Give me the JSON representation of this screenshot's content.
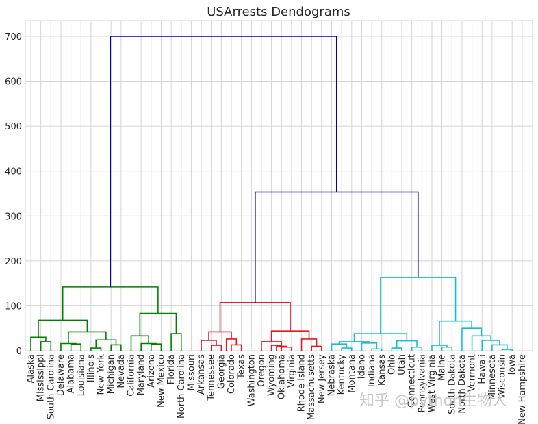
{
  "chart_data": {
    "type": "dendrogram",
    "title": "USArrests Dendograms",
    "xlabel": "",
    "ylabel": "",
    "ylim": [
      0,
      735
    ],
    "yticks": [
      0,
      100,
      200,
      300,
      400,
      500,
      600,
      700
    ],
    "grid": true,
    "leaves": [
      "Alaska",
      "Mississippi",
      "South Carolina",
      "Delaware",
      "Alabama",
      "Louisiana",
      "Illinois",
      "New York",
      "Michigan",
      "Nevada",
      "California",
      "Maryland",
      "Arizona",
      "New Mexico",
      "Florida",
      "North Carolina",
      "Missouri",
      "Arkansas",
      "Tennessee",
      "Georgia",
      "Colorado",
      "Texas",
      "Washington",
      "Oregon",
      "Wyoming",
      "Oklahoma",
      "Virginia",
      "Rhode Island",
      "Massachusetts",
      "New Jersey",
      "Nebraska",
      "Kentucky",
      "Montana",
      "Idaho",
      "Indiana",
      "Kansas",
      "Ohio",
      "Utah",
      "Connecticut",
      "Pennsylvania",
      "West Virginia",
      "Maine",
      "South Dakota",
      "North Dakota",
      "Vermont",
      "Hawaii",
      "Minnesota",
      "Wisconsin",
      "Iowa",
      "New Hampshire"
    ],
    "cluster_colors": {
      "green": "#008000",
      "red": "#e41a1c",
      "cyan": "#17becf",
      "above": "#0000aa"
    },
    "links": [
      {
        "l": 1,
        "r": 2,
        "h": 20,
        "c": "green"
      },
      {
        "l": 0,
        "r": 1.5,
        "h": 30,
        "c": "green"
      },
      {
        "l": 4,
        "r": 5,
        "h": 15,
        "c": "green"
      },
      {
        "l": 3,
        "r": 4.5,
        "h": 16,
        "c": "green"
      },
      {
        "l": 6,
        "r": 7,
        "h": 6,
        "c": "green"
      },
      {
        "l": 8,
        "r": 9,
        "h": 13,
        "c": "green"
      },
      {
        "l": 6.5,
        "r": 8.5,
        "h": 24,
        "c": "green"
      },
      {
        "l": 3.75,
        "r": 7.5,
        "h": 42,
        "c": "green"
      },
      {
        "l": 0.75,
        "r": 5.625,
        "h": 68,
        "c": "green"
      },
      {
        "l": 12,
        "r": 13,
        "h": 15,
        "c": "green"
      },
      {
        "l": 11,
        "r": 12.5,
        "h": 16,
        "c": "green"
      },
      {
        "l": 10,
        "r": 11.75,
        "h": 33,
        "c": "green"
      },
      {
        "l": 14,
        "r": 15,
        "h": 38,
        "c": "green"
      },
      {
        "l": 10.875,
        "r": 14.5,
        "h": 83,
        "c": "green"
      },
      {
        "l": 3.1875,
        "r": 12.6875,
        "h": 142,
        "c": "green"
      },
      {
        "l": 18,
        "r": 19,
        "h": 12,
        "c": "red"
      },
      {
        "l": 17,
        "r": 18.5,
        "h": 23,
        "c": "red"
      },
      {
        "l": 20,
        "r": 21,
        "h": 13,
        "c": "red"
      },
      {
        "l": 19.5,
        "r": 20.5,
        "h": 26,
        "c": "red"
      },
      {
        "l": 17.75,
        "r": 20,
        "h": 42,
        "c": "red"
      },
      {
        "l": 24,
        "r": 25,
        "h": 12,
        "c": "red"
      },
      {
        "l": 25,
        "r": 26,
        "h": 8,
        "c": "red"
      },
      {
        "l": 24.5,
        "r": 25.5,
        "h": 10,
        "c": "red"
      },
      {
        "l": 23,
        "r": 25,
        "h": 20,
        "c": "red"
      },
      {
        "l": 28,
        "r": 29,
        "h": 10,
        "c": "red"
      },
      {
        "l": 27,
        "r": 28.5,
        "h": 26,
        "c": "red"
      },
      {
        "l": 24,
        "r": 27.75,
        "h": 44,
        "c": "red"
      },
      {
        "l": 18.875,
        "r": 25.875,
        "h": 107,
        "c": "red"
      },
      {
        "l": 31,
        "r": 32,
        "h": 6,
        "c": "cyan"
      },
      {
        "l": 30,
        "r": 31.5,
        "h": 15,
        "c": "cyan"
      },
      {
        "l": 34,
        "r": 35,
        "h": 4,
        "c": "cyan"
      },
      {
        "l": 33,
        "r": 34.5,
        "h": 17,
        "c": "cyan"
      },
      {
        "l": 30.75,
        "r": 33.75,
        "h": 20,
        "c": "cyan"
      },
      {
        "l": 36,
        "r": 37,
        "h": 6,
        "c": "cyan"
      },
      {
        "l": 38,
        "r": 39,
        "h": 8,
        "c": "cyan"
      },
      {
        "l": 36.5,
        "r": 38.5,
        "h": 22,
        "c": "cyan"
      },
      {
        "l": 32.25,
        "r": 37.5,
        "h": 38,
        "c": "cyan"
      },
      {
        "l": 41,
        "r": 42,
        "h": 8,
        "c": "cyan"
      },
      {
        "l": 40,
        "r": 41.5,
        "h": 12,
        "c": "cyan"
      },
      {
        "l": 47,
        "r": 48,
        "h": 3,
        "c": "cyan"
      },
      {
        "l": 46,
        "r": 47.5,
        "h": 13,
        "c": "cyan"
      },
      {
        "l": 45,
        "r": 46.75,
        "h": 23,
        "c": "cyan"
      },
      {
        "l": 44,
        "r": 45.875,
        "h": 33,
        "c": "cyan"
      },
      {
        "l": 43,
        "r": 44.9375,
        "h": 50,
        "c": "cyan"
      },
      {
        "l": 40.75,
        "r": 43.96875,
        "h": 66,
        "c": "cyan"
      },
      {
        "l": 34.875,
        "r": 42.359375,
        "h": 163,
        "c": "cyan"
      },
      {
        "l": 22.375,
        "r": 38.6171875,
        "h": 353,
        "c": "above"
      },
      {
        "l": 7.9375,
        "r": 30.49609375,
        "h": 700,
        "c": "above"
      }
    ]
  },
  "watermark": {
    "text": "知乎 @python生物人"
  }
}
